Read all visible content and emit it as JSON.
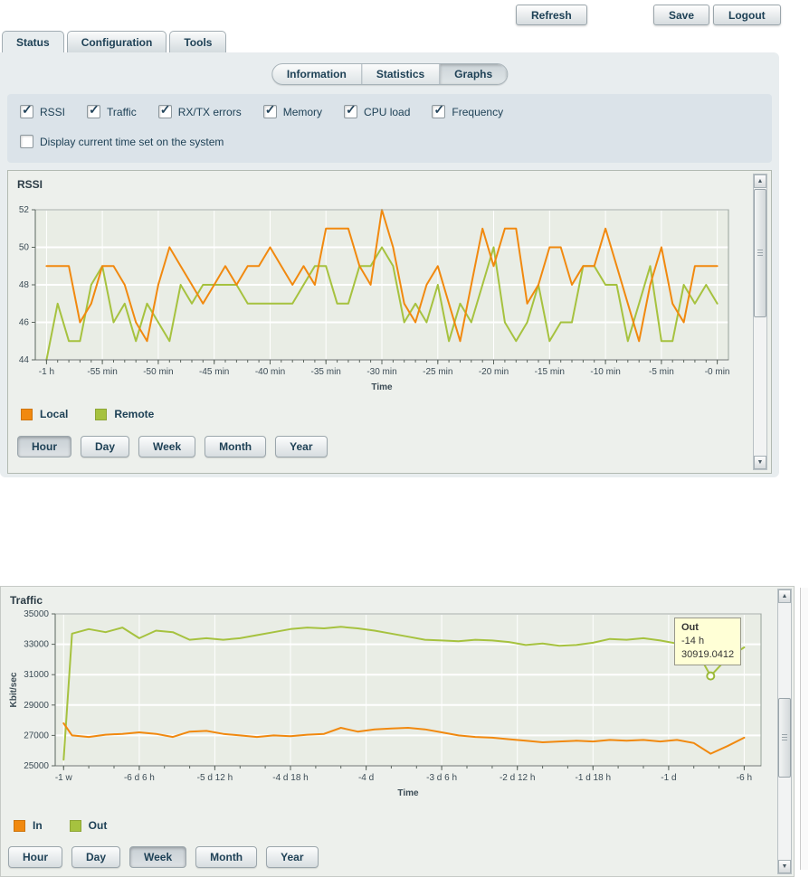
{
  "header": {
    "refresh_label": "Refresh",
    "save_label": "Save",
    "logout_label": "Logout"
  },
  "tabs": [
    {
      "label": "Status",
      "active": true
    },
    {
      "label": "Configuration",
      "active": false
    },
    {
      "label": "Tools",
      "active": false
    }
  ],
  "subtabs": [
    {
      "label": "Information",
      "active": false
    },
    {
      "label": "Statistics",
      "active": false
    },
    {
      "label": "Graphs",
      "active": true
    }
  ],
  "graph_options": {
    "checkboxes": [
      {
        "label": "RSSI",
        "checked": true
      },
      {
        "label": "Traffic",
        "checked": true
      },
      {
        "label": "RX/TX errors",
        "checked": true
      },
      {
        "label": "Memory",
        "checked": true
      },
      {
        "label": "CPU load",
        "checked": true
      },
      {
        "label": "Frequency",
        "checked": true
      }
    ],
    "display_time": {
      "label": "Display current time set on the system",
      "checked": false
    }
  },
  "range_buttons": [
    "Hour",
    "Day",
    "Week",
    "Month",
    "Year"
  ],
  "icons": {
    "scroll_up": "▲",
    "scroll_down": "▼",
    "check": "✓"
  },
  "colors": {
    "accent_text": "#1e4156",
    "panel_bg": "#e8edef",
    "orange": "#f1890f",
    "green": "#a6c23f"
  },
  "chart_data": [
    {
      "type": "line",
      "title": "RSSI",
      "xlabel": "Time",
      "ylabel": "",
      "xlim": [
        -61,
        1
      ],
      "ylim": [
        44,
        52
      ],
      "yticks": [
        44,
        46,
        48,
        50,
        52
      ],
      "xticks": [
        {
          "v": -60,
          "label": "-1 h"
        },
        {
          "v": -55,
          "label": "-55 min"
        },
        {
          "v": -50,
          "label": "-50 min"
        },
        {
          "v": -45,
          "label": "-45 min"
        },
        {
          "v": -40,
          "label": "-40 min"
        },
        {
          "v": -35,
          "label": "-35 min"
        },
        {
          "v": -30,
          "label": "-30 min"
        },
        {
          "v": -25,
          "label": "-25 min"
        },
        {
          "v": -20,
          "label": "-20 min"
        },
        {
          "v": -15,
          "label": "-15 min"
        },
        {
          "v": -10,
          "label": "-10 min"
        },
        {
          "v": -5,
          "label": "-5 min"
        },
        {
          "v": 0,
          "label": "-0 min"
        }
      ],
      "minor_ticks": {
        "start": -60,
        "step": 1,
        "end": 0
      },
      "grid": true,
      "plot_bg": "#e9ede5",
      "active_range": "Hour",
      "legend_position": "bottom-left",
      "x": [
        -60,
        -59,
        -58,
        -57,
        -56,
        -55,
        -54,
        -53,
        -52,
        -51,
        -50,
        -49,
        -48,
        -47,
        -46,
        -45,
        -44,
        -43,
        -42,
        -41,
        -40,
        -39,
        -38,
        -37,
        -36,
        -35,
        -34,
        -33,
        -32,
        -31,
        -30,
        -29,
        -28,
        -27,
        -26,
        -25,
        -24,
        -23,
        -22,
        -21,
        -20,
        -19,
        -18,
        -17,
        -16,
        -15,
        -14,
        -13,
        -12,
        -11,
        -10,
        -9,
        -8,
        -7,
        -6,
        -5,
        -4,
        -3,
        -2,
        -1,
        0
      ],
      "series": [
        {
          "name": "Local",
          "color": "#f1890f",
          "values": [
            49,
            49,
            49,
            46,
            47,
            49,
            49,
            48,
            46,
            45,
            48,
            50,
            49,
            48,
            47,
            48,
            49,
            48,
            49,
            49,
            50,
            49,
            48,
            49,
            48,
            51,
            51,
            51,
            49,
            48,
            52,
            50,
            47,
            46,
            48,
            49,
            47,
            45,
            48,
            51,
            49,
            51,
            51,
            47,
            48,
            50,
            50,
            48,
            49,
            49,
            51,
            49,
            47,
            45,
            48,
            50,
            47,
            46,
            49,
            49,
            49
          ]
        },
        {
          "name": "Remote",
          "color": "#a6c23f",
          "values": [
            44,
            47,
            45,
            45,
            48,
            49,
            46,
            47,
            45,
            47,
            46,
            45,
            48,
            47,
            48,
            48,
            48,
            48,
            47,
            47,
            47,
            47,
            47,
            48,
            49,
            49,
            47,
            47,
            49,
            49,
            50,
            49,
            46,
            47,
            46,
            48,
            45,
            47,
            46,
            48,
            50,
            46,
            45,
            46,
            48,
            45,
            46,
            46,
            49,
            49,
            48,
            48,
            45,
            47,
            49,
            45,
            45,
            48,
            47,
            48,
            47
          ]
        }
      ]
    },
    {
      "type": "line",
      "title": "Traffic",
      "xlabel": "Time",
      "ylabel": "Kbit/sec",
      "xlim": [
        -170,
        -2
      ],
      "ylim": [
        25000,
        35000
      ],
      "yticks": [
        25000,
        27000,
        29000,
        31000,
        33000,
        35000
      ],
      "xticks": [
        {
          "v": -168,
          "label": "-1 w"
        },
        {
          "v": -150,
          "label": "-6 d 6 h"
        },
        {
          "v": -132,
          "label": "-5 d 12 h"
        },
        {
          "v": -114,
          "label": "-4 d 18 h"
        },
        {
          "v": -96,
          "label": "-4 d"
        },
        {
          "v": -78,
          "label": "-3 d 6 h"
        },
        {
          "v": -60,
          "label": "-2 d 12 h"
        },
        {
          "v": -42,
          "label": "-1 d 18 h"
        },
        {
          "v": -24,
          "label": "-1 d"
        },
        {
          "v": -6,
          "label": "-6 h"
        }
      ],
      "minor_ticks": {
        "start": -168,
        "step": 6,
        "end": -6
      },
      "grid": true,
      "plot_bg": "#e9ede5",
      "active_range": "Week",
      "legend_position": "bottom-left",
      "x": [
        -168,
        -166,
        -162,
        -158,
        -154,
        -150,
        -146,
        -142,
        -138,
        -134,
        -130,
        -126,
        -122,
        -118,
        -114,
        -110,
        -106,
        -102,
        -98,
        -94,
        -90,
        -86,
        -82,
        -78,
        -74,
        -70,
        -66,
        -62,
        -58,
        -54,
        -50,
        -46,
        -42,
        -38,
        -34,
        -30,
        -26,
        -22,
        -18,
        -14,
        -10,
        -6
      ],
      "series": [
        {
          "name": "In",
          "color": "#f1890f",
          "values": [
            27800,
            27000,
            26900,
            27050,
            27100,
            27200,
            27100,
            26900,
            27250,
            27300,
            27100,
            27000,
            26900,
            27000,
            26950,
            27050,
            27100,
            27500,
            27250,
            27400,
            27450,
            27500,
            27400,
            27200,
            27000,
            26900,
            26850,
            26750,
            26650,
            26550,
            26600,
            26650,
            26600,
            26700,
            26650,
            26700,
            26600,
            26700,
            26500,
            25800,
            26300,
            26850
          ]
        },
        {
          "name": "Out",
          "color": "#a6c23f",
          "values": [
            25400,
            33700,
            34000,
            33800,
            34100,
            33400,
            33900,
            33800,
            33300,
            33400,
            33300,
            33400,
            33600,
            33800,
            34000,
            34100,
            34050,
            34150,
            34050,
            33900,
            33700,
            33500,
            33300,
            33250,
            33200,
            33300,
            33250,
            33150,
            32950,
            33050,
            32900,
            32950,
            33100,
            33350,
            33300,
            33400,
            33250,
            33050,
            32900,
            30919.0412,
            32100,
            32800
          ]
        }
      ],
      "marker": {
        "series": "Out",
        "x": -14,
        "y": 30919.0412
      },
      "tooltip": {
        "series": "Out",
        "time": "-14 h",
        "value": "30919.0412"
      }
    }
  ]
}
